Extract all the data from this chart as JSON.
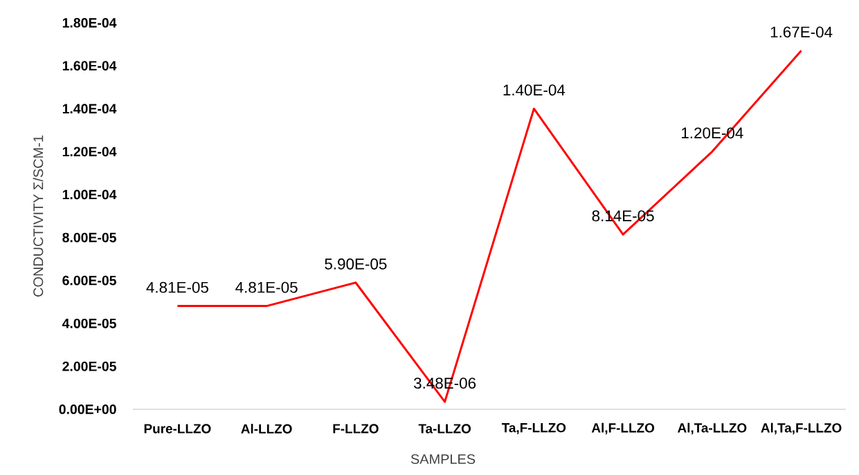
{
  "chart_data": {
    "type": "line",
    "xlabel": "SAMPLES",
    "ylabel": "CONDUCTIVITY  Σ/SCM-1",
    "categories": [
      "Pure-LLZO",
      "Al-LLZO",
      "F-LLZO",
      "Ta-LLZO",
      "Ta,F-LLZO",
      "Al,F-LLZO",
      "Al,Ta-LLZO",
      "Al,Ta,F-LLZO"
    ],
    "series": [
      {
        "color": "#ff0000",
        "values": [
          4.81e-05,
          4.81e-05,
          5.9e-05,
          3.48e-06,
          0.00014,
          8.14e-05,
          0.00012,
          0.000167
        ],
        "value_labels": [
          "4.81E-05",
          "4.81E-05",
          "5.90E-05",
          "3.48E-06",
          "1.40E-04",
          "8.14E-05",
          "1.20E-04",
          "1.67E-04"
        ]
      }
    ],
    "ylim": [
      0,
      0.00018
    ],
    "yticks": [
      {
        "value": 0,
        "label": "0.00E+00"
      },
      {
        "value": 2e-05,
        "label": "2.00E-05"
      },
      {
        "value": 4e-05,
        "label": "4.00E-05"
      },
      {
        "value": 6e-05,
        "label": "6.00E-05"
      },
      {
        "value": 8e-05,
        "label": "8.00E-05"
      },
      {
        "value": 0.0001,
        "label": "1.00E-04"
      },
      {
        "value": 0.00012,
        "label": "1.20E-04"
      },
      {
        "value": 0.00014,
        "label": "1.40E-04"
      },
      {
        "value": 0.00016,
        "label": "1.60E-04"
      },
      {
        "value": 0.00018,
        "label": "1.80E-04"
      }
    ],
    "grid": false
  }
}
